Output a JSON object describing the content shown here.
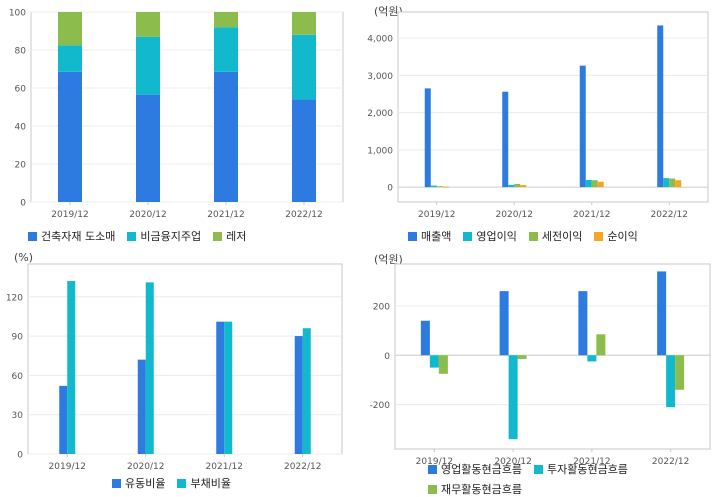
{
  "chart_data": [
    {
      "id": "sales-mix",
      "type": "bar",
      "stacked": true,
      "unit": "",
      "categories": [
        "2019/12",
        "2020/12",
        "2021/12",
        "2022/12"
      ],
      "series": [
        {
          "name": "건축자재 도소매",
          "color": "#2d7be0",
          "values": [
            68.5,
            56.5,
            68.5,
            54
          ]
        },
        {
          "name": "비금융지주업",
          "color": "#12b9cc",
          "values": [
            14,
            30.5,
            23.5,
            34
          ]
        },
        {
          "name": "레저",
          "color": "#8cbd4c",
          "values": [
            17.5,
            13,
            8,
            12
          ]
        }
      ],
      "ylim": [
        0,
        100
      ],
      "yticks": [
        0,
        20,
        40,
        60,
        80,
        100
      ],
      "grid": true,
      "legend": "bottom"
    },
    {
      "id": "income",
      "type": "bar",
      "unit": "(억원)",
      "categories": [
        "2019/12",
        "2020/12",
        "2021/12",
        "2022/12"
      ],
      "series": [
        {
          "name": "매출액",
          "color": "#2d7be0",
          "values": [
            2650,
            2560,
            3260,
            4340
          ]
        },
        {
          "name": "영업이익",
          "color": "#12b9cc",
          "values": [
            40,
            60,
            190,
            240
          ]
        },
        {
          "name": "세전이익",
          "color": "#8cbd4c",
          "values": [
            25,
            85,
            185,
            230
          ]
        },
        {
          "name": "순이익",
          "color": "#f5a623",
          "values": [
            15,
            55,
            145,
            185
          ]
        }
      ],
      "ylim": [
        -400,
        4700
      ],
      "yticks": [
        0,
        1000,
        2000,
        3000,
        4000
      ],
      "yticklabels": [
        "0",
        "1,000",
        "2,000",
        "3,000",
        "4,000"
      ],
      "grid": true,
      "legend": "bottom"
    },
    {
      "id": "ratios",
      "type": "bar",
      "unit": "(%)",
      "categories": [
        "2019/12",
        "2020/12",
        "2021/12",
        "2022/12"
      ],
      "series": [
        {
          "name": "유동비율",
          "color": "#2d7be0",
          "values": [
            52,
            72,
            101,
            90
          ]
        },
        {
          "name": "부채비율",
          "color": "#12b9cc",
          "values": [
            132,
            131,
            101,
            96
          ]
        }
      ],
      "ylim": [
        0,
        145
      ],
      "yticks": [
        0,
        30,
        60,
        90,
        120
      ],
      "grid": true,
      "legend": "bottom"
    },
    {
      "id": "cashflow",
      "type": "bar",
      "unit": "(억원)",
      "categories": [
        "2019/12",
        "2020/12",
        "2021/12",
        "2022/12"
      ],
      "series": [
        {
          "name": "영업활동현금흐름",
          "color": "#2d7be0",
          "values": [
            140,
            260,
            260,
            340
          ]
        },
        {
          "name": "투자활동현금흐름",
          "color": "#12b9cc",
          "values": [
            -50,
            -340,
            -25,
            -210
          ]
        },
        {
          "name": "재무활동현금흐름",
          "color": "#8cbd4c",
          "values": [
            -75,
            -15,
            85,
            -140
          ]
        }
      ],
      "ylim": [
        -380,
        370
      ],
      "yticks": [
        -200,
        0,
        200
      ],
      "grid": true,
      "legend": "bottom"
    }
  ]
}
